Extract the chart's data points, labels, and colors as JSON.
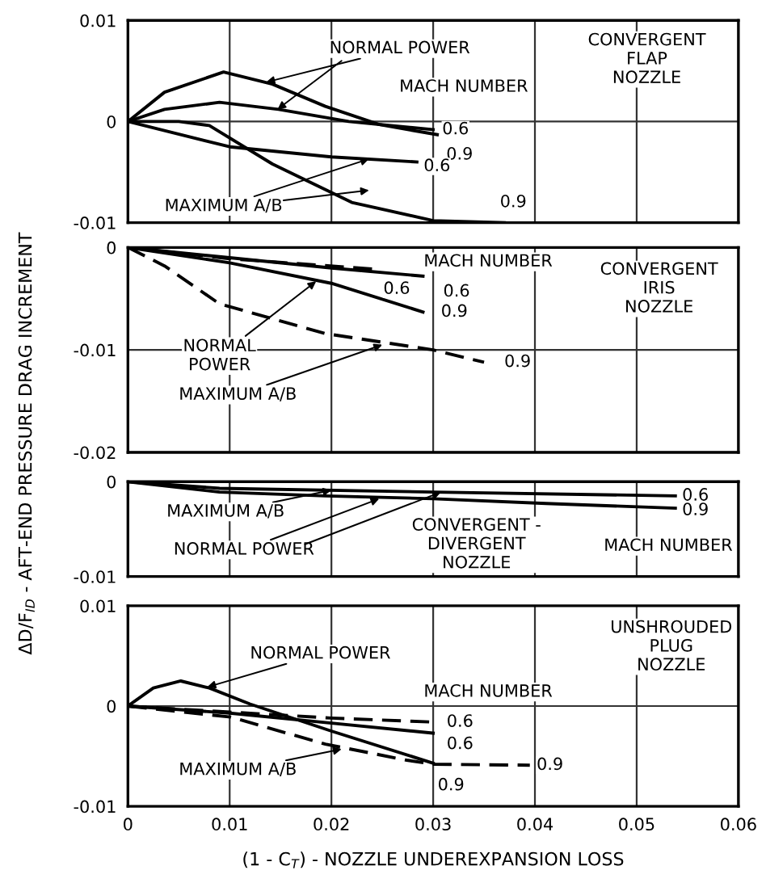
{
  "chart_data": [
    {
      "type": "line",
      "xlim": [
        0,
        0.06
      ],
      "xticks": [
        0,
        0.01,
        0.02,
        0.03,
        0.04,
        0.05,
        0.06
      ],
      "ylim": [
        -0.01,
        0.01
      ],
      "yticks": [
        0.01,
        0,
        -0.01
      ],
      "grid": true,
      "tick_labels": "y",
      "line_style": "solid",
      "series": [
        {
          "color": "#000000",
          "x": [
            0,
            0.0036,
            0.0094,
            0.0142,
            0.0194,
            0.0247,
            0.0304
          ],
          "values": [
            0,
            0.0029,
            0.0049,
            0.0037,
            0.0015,
            -0.0003,
            -0.0013
          ]
        },
        {
          "color": "#000000",
          "x": [
            0,
            0.0036,
            0.009,
            0.0148,
            0.0217,
            0.03
          ],
          "values": [
            0,
            0.0012,
            0.0019,
            0.0012,
            0,
            -0.0008
          ]
        },
        {
          "color": "#000000",
          "x": [
            0,
            0.01,
            0.02,
            0.0284
          ],
          "values": [
            0,
            -0.0025,
            -0.0035,
            -0.004
          ]
        },
        {
          "color": "#000000",
          "x": [
            0,
            0.005,
            0.008,
            0.0142,
            0.022,
            0.03,
            0.037
          ],
          "values": [
            0,
            0,
            -0.0004,
            -0.0042,
            -0.008,
            -0.0098,
            -0.01
          ]
        }
      ],
      "annotations": [
        {
          "text": "NORMAL POWER",
          "x": 0.0136,
          "y": 0.0039
        },
        "MACH NUMBER",
        "CONVERGENT\nFLAP\nNOZZLE",
        {
          "text": "0.6",
          "x": 0.03,
          "y": -0.0008
        },
        {
          "text": "0.9",
          "x": 0.0304,
          "y": -0.0013
        },
        {
          "text": "0.6",
          "x": 0.0284,
          "y": -0.004
        },
        {
          "text": "0.9",
          "x": 0.037,
          "y": -0.01
        },
        {
          "text": "MAXIMUM A/B",
          "x": 0.0237,
          "y": -0.0037
        }
      ]
    },
    {
      "type": "line",
      "xlim": [
        0,
        0.06
      ],
      "xticks": [
        0,
        0.01,
        0.02,
        0.03,
        0.04,
        0.05,
        0.06
      ],
      "ylim": [
        -0.02,
        0
      ],
      "yticks": [
        0,
        -0.01,
        -0.02
      ],
      "grid": true,
      "tick_labels": "y",
      "series": [
        {
          "color": "#000000",
          "line_style": "dashed",
          "x": [
            0,
            0.01,
            0.024
          ],
          "values": [
            0,
            -0.0011,
            -0.0021
          ]
        },
        {
          "color": "#000000",
          "line_style": "solid",
          "x": [
            0,
            0.01,
            0.02,
            0.029
          ],
          "values": [
            0,
            -0.001,
            -0.002,
            -0.0028
          ]
        },
        {
          "color": "#000000",
          "line_style": "solid",
          "x": [
            0,
            0.01,
            0.02,
            0.029
          ],
          "values": [
            0,
            -0.0015,
            -0.0035,
            -0.0063
          ]
        },
        {
          "color": "#000000",
          "line_style": "dashed",
          "x": [
            0,
            0.0036,
            0.009,
            0.0194,
            0.03,
            0.035
          ],
          "values": [
            0,
            -0.0018,
            -0.0055,
            -0.0084,
            -0.01,
            -0.0112
          ]
        }
      ],
      "annotations": [
        "MACH NUMBER",
        "CONVERGENT\nIRIS\nNOZZLE",
        {
          "text": "0.6",
          "x": 0.024,
          "y": -0.0021
        },
        {
          "text": "0.6",
          "x": 0.029,
          "y": -0.0028
        },
        {
          "text": "0.9",
          "x": 0.029,
          "y": -0.0063
        },
        {
          "text": "0.9",
          "x": 0.035,
          "y": -0.0112
        },
        {
          "text": "NORMAL\nPOWER",
          "x": 0.0185,
          "y": -0.0033
        },
        {
          "text": "MAXIMUM A/B",
          "x": 0.025,
          "y": -0.0095
        }
      ]
    },
    {
      "type": "line",
      "xlim": [
        0,
        0.06
      ],
      "xticks": [
        0,
        0.01,
        0.02,
        0.03,
        0.04,
        0.05,
        0.06
      ],
      "ylim": [
        -0.01,
        0
      ],
      "yticks": [
        0,
        -0.01
      ],
      "grid": true,
      "tick_labels": "y",
      "line_style": "solid",
      "series": [
        {
          "color": "#000000",
          "x": [
            0,
            0.009,
            0.03,
            0.0538
          ],
          "values": [
            0,
            -0.0007,
            -0.0011,
            -0.0015
          ]
        },
        {
          "color": "#000000",
          "x": [
            0,
            0.009,
            0.0194,
            0.03,
            0.0411,
            0.0538
          ],
          "values": [
            0,
            -0.0011,
            -0.0015,
            -0.0018,
            -0.0023,
            -0.0028
          ]
        }
      ],
      "annotations": [
        {
          "text": "MAXIMUM A/B",
          "x": 0.02,
          "y": -0.0009
        },
        {
          "text": "NORMAL POWER",
          "x": 0.0247,
          "y": -0.0018
        },
        "CONVERGENT -\nDIVERGENT\nNOZZLE",
        "MACH NUMBER",
        {
          "text": "0.6",
          "x": 0.0538,
          "y": -0.0015
        },
        {
          "text": "0.9",
          "x": 0.0538,
          "y": -0.0028
        }
      ]
    },
    {
      "type": "line",
      "xlim": [
        0,
        0.06
      ],
      "xticks": [
        0,
        0.01,
        0.02,
        0.03,
        0.04,
        0.05,
        0.06
      ],
      "ylim": [
        -0.01,
        0.01
      ],
      "yticks": [
        0.01,
        0,
        -0.01
      ],
      "grid": true,
      "xlabel": "(1 - C$_{T}$) - NOZZLE UNDEREXPANSION LOSS",
      "ylabel": "ΔD/F$_{ID}$ - AFT-END PRESSURE DRAG INCREMENT",
      "series": [
        {
          "color": "#000000",
          "line_style": "solid",
          "x": [
            0,
            0.0025,
            0.0052,
            0.008,
            0.012,
            0.02,
            0.03
          ],
          "values": [
            0,
            0.0018,
            0.0025,
            0.0018,
            0.0002,
            -0.0025,
            -0.0057
          ]
        },
        {
          "color": "#000000",
          "line_style": "solid",
          "x": [
            0,
            0.01,
            0.02,
            0.03
          ],
          "values": [
            0,
            -0.0007,
            -0.0017,
            -0.0027
          ]
        },
        {
          "color": "#000000",
          "line_style": "dashed",
          "x": [
            0,
            0.01,
            0.02,
            0.03
          ],
          "values": [
            0,
            -0.0006,
            -0.0012,
            -0.0016
          ]
        },
        {
          "color": "#000000",
          "line_style": "dashed",
          "x": [
            0,
            0.0101,
            0.0194,
            0.0274,
            0.03,
            0.0395
          ],
          "values": [
            0,
            -0.0011,
            -0.0038,
            -0.0054,
            -0.0058,
            -0.0059
          ]
        }
      ],
      "annotations": [
        {
          "text": "NORMAL POWER",
          "x": 0.0078,
          "y": 0.0019
        },
        "UNSHROUDED\nPLUG\nNOZZLE",
        "MACH NUMBER",
        {
          "text": "0.6",
          "x": 0.03,
          "y": -0.0016
        },
        {
          "text": "0.6",
          "x": 0.03,
          "y": -0.0027
        },
        {
          "text": "0.9",
          "x": 0.03,
          "y": -0.0057
        },
        {
          "text": "0.9",
          "x": 0.0395,
          "y": -0.0059
        },
        {
          "text": "MAXIMUM A/B",
          "x": 0.021,
          "y": -0.0043
        }
      ]
    }
  ]
}
